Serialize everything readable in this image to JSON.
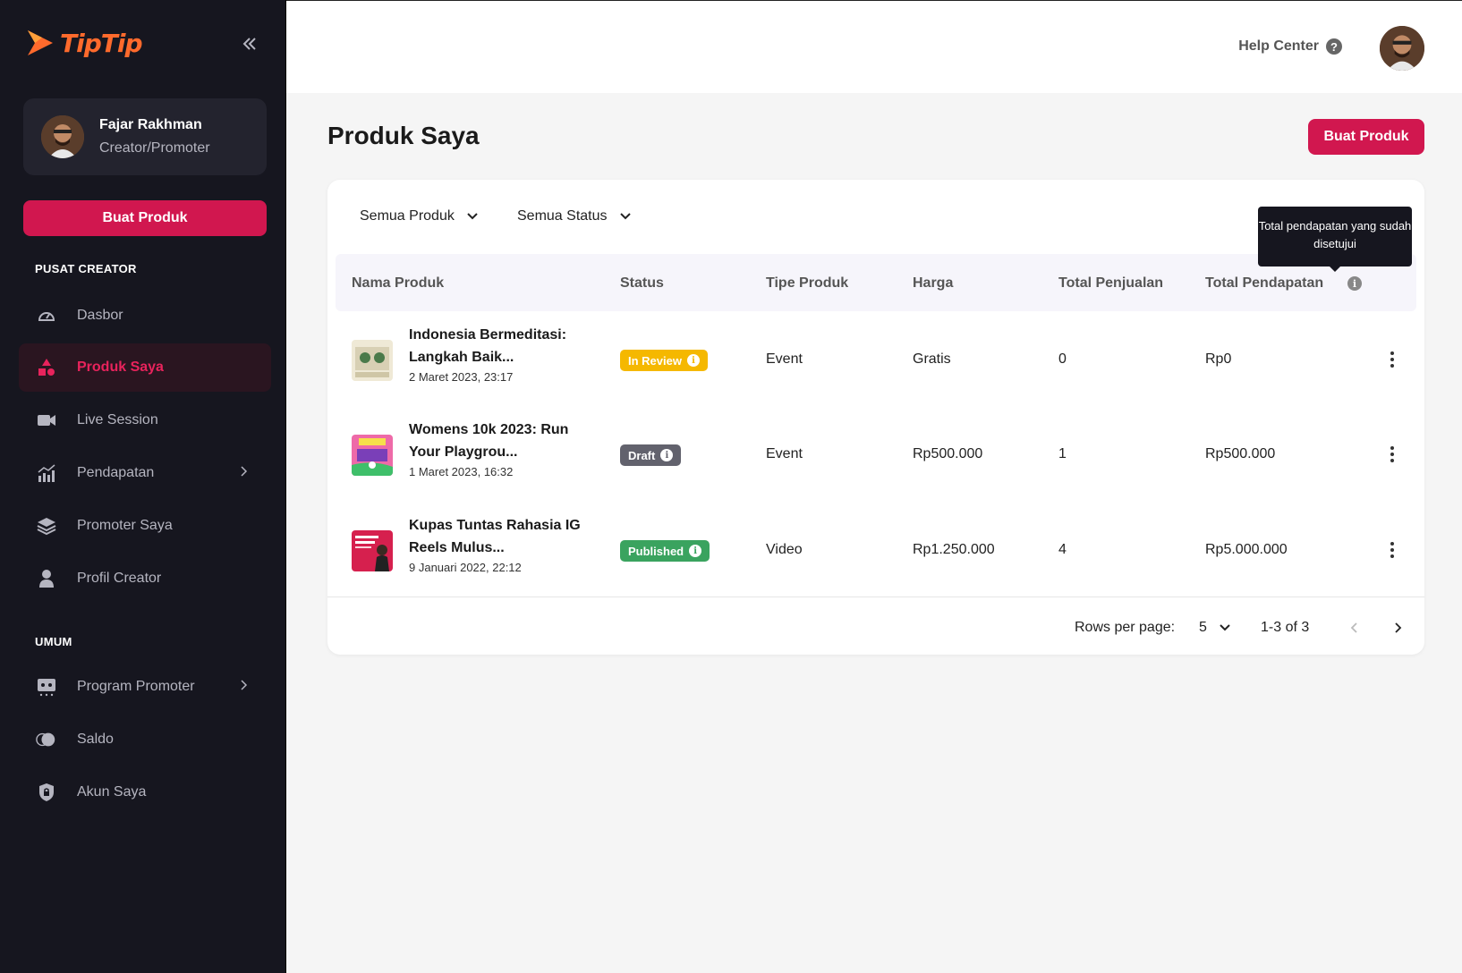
{
  "brand": {
    "name": "TipTip",
    "color": "#ff6a2c"
  },
  "sidebar": {
    "user": {
      "name": "Fajar Rakhman",
      "role": "Creator/Promoter"
    },
    "create_button": "Buat Produk",
    "section_creator": "PUSAT CREATOR",
    "creator_items": [
      {
        "label": "Dasbor",
        "icon": "speedometer-icon"
      },
      {
        "label": "Produk Saya",
        "icon": "shapes-icon",
        "active": true
      },
      {
        "label": "Live Session",
        "icon": "video-camera-icon"
      },
      {
        "label": "Pendapatan",
        "icon": "bar-chart-icon",
        "has_submenu": true
      },
      {
        "label": "Promoter Saya",
        "icon": "layers-icon"
      },
      {
        "label": "Profil Creator",
        "icon": "person-icon"
      }
    ],
    "section_general": "UMUM",
    "general_items": [
      {
        "label": "Program Promoter",
        "icon": "promoter-icon",
        "has_submenu": true
      },
      {
        "label": "Saldo",
        "icon": "coins-icon"
      },
      {
        "label": "Akun Saya",
        "icon": "lock-shield-icon"
      }
    ]
  },
  "header": {
    "help_label": "Help Center"
  },
  "main": {
    "title": "Produk Saya",
    "create_button": "Buat Produk",
    "filters": {
      "product": "Semua Produk",
      "status": "Semua Status"
    },
    "tooltip": "Total pendapatan yang sudah disetujui",
    "columns": [
      "Nama Produk",
      "Status",
      "Tipe Produk",
      "Harga",
      "Total Penjualan",
      "Total Pendapatan"
    ],
    "rows": [
      {
        "name_line1": "Indonesia Bermeditasi:",
        "name_line2": "Langkah Baik...",
        "date": "2 Maret 2023, 23:17",
        "status": "In Review",
        "status_color": "#f5b800",
        "type": "Event",
        "price": "Gratis",
        "sales": "0",
        "revenue": "Rp0"
      },
      {
        "name_line1": "Womens 10k 2023: Run",
        "name_line2": "Your Playgrou...",
        "date": "1 Maret 2023, 16:32",
        "status": "Draft",
        "status_color": "#62626d",
        "type": "Event",
        "price": "Rp500.000",
        "sales": "1",
        "revenue": "Rp500.000"
      },
      {
        "name_line1": "Kupas Tuntas Rahasia IG",
        "name_line2": "Reels Mulus...",
        "date": "9 Januari 2022, 22:12",
        "status": "Published",
        "status_color": "#3aa35f",
        "type": "Video",
        "price": "Rp1.250.000",
        "sales": "4",
        "revenue": "Rp5.000.000"
      }
    ],
    "pagination": {
      "rows_per_page_label": "Rows per page:",
      "rows_per_page": "5",
      "range": "1-3 of 3"
    }
  },
  "colors": {
    "accent": "#d1174f",
    "sidebar_bg": "#16161f"
  }
}
